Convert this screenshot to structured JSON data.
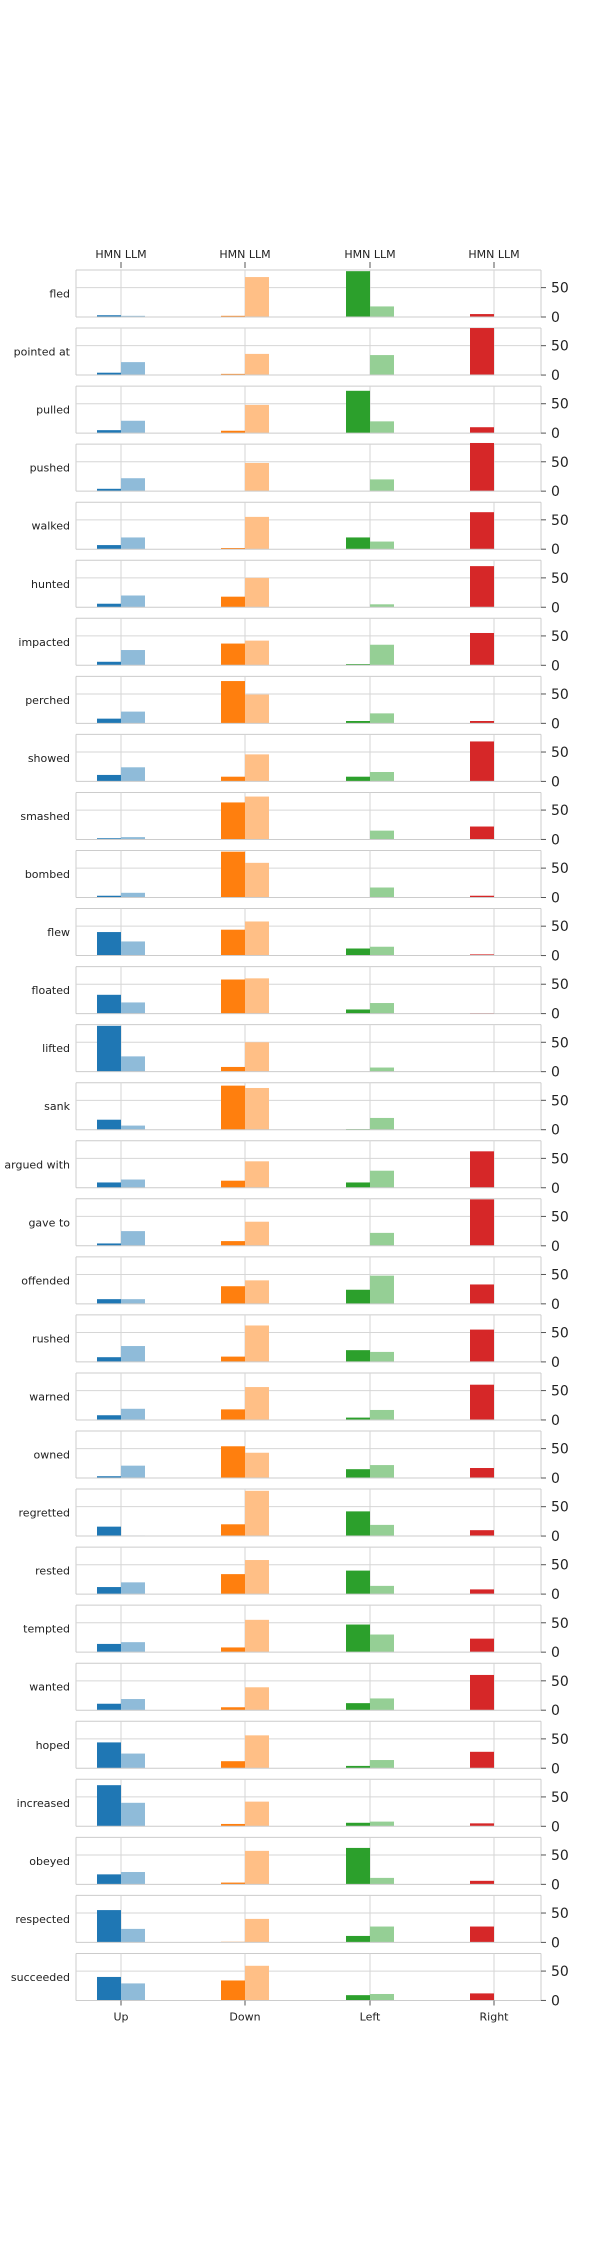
{
  "chart_data": {
    "type": "bar",
    "top_tick_label": "HMN LLM",
    "directions": [
      "Up",
      "Down",
      "Left",
      "Right"
    ],
    "series": [
      "HMN",
      "LLM"
    ],
    "colors": {
      "Up": [
        "#1f77b4",
        "#8fbbd9"
      ],
      "Down": [
        "#ff7f0e",
        "#ffbf86"
      ],
      "Left": [
        "#2ca02c",
        "#95cf95"
      ],
      "Right": [
        "#d62728",
        "#ea9393"
      ]
    },
    "ylim": [
      0,
      80
    ],
    "yticks": [
      0,
      50
    ],
    "rows": [
      {
        "verb": "fled",
        "values": [
          [
            3,
            2
          ],
          [
            2,
            68
          ],
          [
            78,
            18
          ],
          [
            5,
            0
          ]
        ]
      },
      {
        "verb": "pointed at",
        "values": [
          [
            4,
            22
          ],
          [
            2,
            36
          ],
          [
            0,
            34
          ],
          [
            80,
            0
          ]
        ]
      },
      {
        "verb": "pulled",
        "values": [
          [
            5,
            21
          ],
          [
            4,
            48
          ],
          [
            72,
            20
          ],
          [
            10,
            0
          ]
        ]
      },
      {
        "verb": "pushed",
        "values": [
          [
            4,
            22
          ],
          [
            0,
            48
          ],
          [
            0,
            20
          ],
          [
            82,
            0
          ]
        ]
      },
      {
        "verb": "walked",
        "values": [
          [
            7,
            20
          ],
          [
            2,
            55
          ],
          [
            20,
            13
          ],
          [
            63,
            0
          ]
        ]
      },
      {
        "verb": "hunted",
        "values": [
          [
            6,
            20
          ],
          [
            18,
            50
          ],
          [
            0,
            5
          ],
          [
            70,
            0
          ]
        ]
      },
      {
        "verb": "impacted",
        "values": [
          [
            6,
            26
          ],
          [
            37,
            42
          ],
          [
            2,
            35
          ],
          [
            55,
            0
          ]
        ]
      },
      {
        "verb": "perched",
        "values": [
          [
            8,
            20
          ],
          [
            72,
            49
          ],
          [
            4,
            17
          ],
          [
            4,
            0
          ]
        ]
      },
      {
        "verb": "showed",
        "values": [
          [
            11,
            24
          ],
          [
            8,
            46
          ],
          [
            8,
            16
          ],
          [
            68,
            0
          ]
        ]
      },
      {
        "verb": "smashed",
        "values": [
          [
            2,
            4
          ],
          [
            63,
            73
          ],
          [
            0,
            15
          ],
          [
            22,
            0
          ]
        ]
      },
      {
        "verb": "bombed",
        "values": [
          [
            3,
            8
          ],
          [
            78,
            59
          ],
          [
            0,
            17
          ],
          [
            3,
            0
          ]
        ]
      },
      {
        "verb": "flew",
        "values": [
          [
            40,
            24
          ],
          [
            44,
            58
          ],
          [
            12,
            15
          ],
          [
            2,
            0
          ]
        ]
      },
      {
        "verb": "floated",
        "values": [
          [
            32,
            19
          ],
          [
            58,
            60
          ],
          [
            7,
            18
          ],
          [
            1,
            0
          ]
        ]
      },
      {
        "verb": "lifted",
        "values": [
          [
            78,
            26
          ],
          [
            8,
            50
          ],
          [
            0,
            7
          ],
          [
            0,
            0
          ]
        ]
      },
      {
        "verb": "sank",
        "values": [
          [
            17,
            7
          ],
          [
            75,
            71
          ],
          [
            1,
            20
          ],
          [
            0,
            0
          ]
        ]
      },
      {
        "verb": "argued with",
        "values": [
          [
            9,
            14
          ],
          [
            12,
            45
          ],
          [
            9,
            29
          ],
          [
            62,
            0
          ]
        ]
      },
      {
        "verb": "gave to",
        "values": [
          [
            4,
            25
          ],
          [
            8,
            41
          ],
          [
            0,
            22
          ],
          [
            79,
            0
          ]
        ]
      },
      {
        "verb": "offended",
        "values": [
          [
            8,
            8
          ],
          [
            30,
            40
          ],
          [
            24,
            48
          ],
          [
            33,
            0
          ]
        ]
      },
      {
        "verb": "rushed",
        "values": [
          [
            8,
            27
          ],
          [
            9,
            62
          ],
          [
            20,
            17
          ],
          [
            55,
            0
          ]
        ]
      },
      {
        "verb": "warned",
        "values": [
          [
            8,
            19
          ],
          [
            18,
            56
          ],
          [
            4,
            17
          ],
          [
            60,
            0
          ]
        ]
      },
      {
        "verb": "owned",
        "values": [
          [
            3,
            21
          ],
          [
            54,
            43
          ],
          [
            15,
            22
          ],
          [
            17,
            0
          ]
        ]
      },
      {
        "verb": "regretted",
        "values": [
          [
            16,
            1
          ],
          [
            20,
            77
          ],
          [
            42,
            19
          ],
          [
            10,
            0
          ]
        ]
      },
      {
        "verb": "rested",
        "values": [
          [
            12,
            20
          ],
          [
            34,
            58
          ],
          [
            40,
            14
          ],
          [
            8,
            0
          ]
        ]
      },
      {
        "verb": "tempted",
        "values": [
          [
            14,
            17
          ],
          [
            8,
            55
          ],
          [
            47,
            30
          ],
          [
            23,
            0
          ]
        ]
      },
      {
        "verb": "wanted",
        "values": [
          [
            11,
            19
          ],
          [
            5,
            39
          ],
          [
            12,
            20
          ],
          [
            60,
            0
          ]
        ]
      },
      {
        "verb": "hoped",
        "values": [
          [
            44,
            25
          ],
          [
            12,
            56
          ],
          [
            4,
            14
          ],
          [
            28,
            0
          ]
        ]
      },
      {
        "verb": "increased",
        "values": [
          [
            70,
            40
          ],
          [
            4,
            42
          ],
          [
            6,
            8
          ],
          [
            5,
            0
          ]
        ]
      },
      {
        "verb": "obeyed",
        "values": [
          [
            17,
            21
          ],
          [
            3,
            57
          ],
          [
            62,
            11
          ],
          [
            6,
            0
          ]
        ]
      },
      {
        "verb": "respected",
        "values": [
          [
            55,
            23
          ],
          [
            1,
            40
          ],
          [
            11,
            27
          ],
          [
            27,
            0
          ]
        ]
      },
      {
        "verb": "succeeded",
        "values": [
          [
            40,
            29
          ],
          [
            34,
            59
          ],
          [
            9,
            11
          ],
          [
            12,
            0
          ]
        ]
      }
    ]
  }
}
